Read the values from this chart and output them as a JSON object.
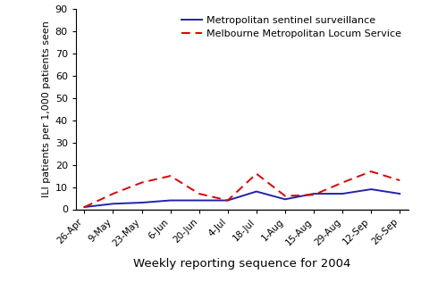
{
  "x_labels": [
    "26-Apr",
    "9-May",
    "23-May",
    "6-Jun",
    "20-Jun",
    "4-Jul",
    "18-Jul",
    "1-Aug",
    "15-Aug",
    "29-Aug",
    "12-Sep",
    "26-Sep"
  ],
  "sentinel": [
    1,
    2.5,
    3,
    4,
    4,
    4,
    8,
    4.5,
    7,
    7,
    9,
    7
  ],
  "locum": [
    1,
    7,
    12,
    15,
    7,
    4,
    16,
    6,
    6.5,
    12,
    17,
    13
  ],
  "sentinel_color": "#2222aa",
  "locum_color": "#dd0000",
  "ylim": [
    0,
    90
  ],
  "yticks": [
    0,
    10,
    20,
    30,
    40,
    50,
    60,
    70,
    80,
    90
  ],
  "ylabel": "ILI patients per 1,000 patients seen",
  "xlabel": "Weekly reporting sequence for 2004",
  "legend_sentinel": "Metropolitan sentinel surveillance",
  "legend_locum": "Melbourne Metropolitan Locum Service",
  "bg_color": "#ffffff"
}
